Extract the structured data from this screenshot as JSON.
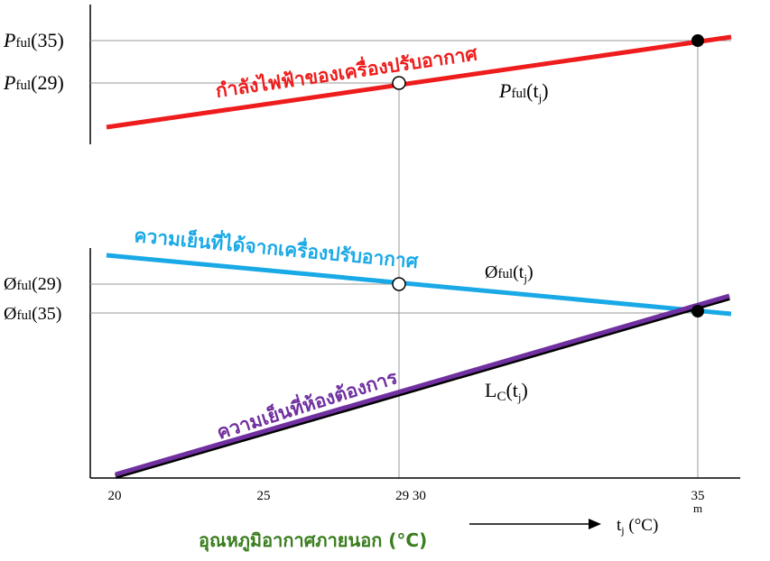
{
  "upper": {
    "labels": [
      {
        "symbol": "P",
        "sub": "ful",
        "arg": "(35)"
      },
      {
        "symbol": "P",
        "sub": "ful",
        "arg": "(29)"
      }
    ],
    "line_label": "กำลังไฟฟ้าของเครื่องปรับอากาศ",
    "curve_label": {
      "symbol": "P",
      "sub": "ful",
      "open": "(t",
      "sub2": "j",
      "close": ")"
    }
  },
  "lower": {
    "labels": [
      {
        "symbol": "Ø",
        "sub": "ful",
        "arg": "(29)"
      },
      {
        "symbol": "Ø",
        "sub": "ful",
        "arg": "(35)"
      }
    ],
    "capacity_label": "ความเย็นที่ได้จากเครื่องปรับอากาศ",
    "capacity_curve_label": {
      "symbol": "Ø",
      "sub": "ful",
      "open": "(t",
      "sub2": "j",
      "close": ")"
    },
    "load_label": "ความเย็นที่ห้องต้องการ",
    "load_curve_label": {
      "symbol": "L",
      "sub": "C",
      "open": "(t",
      "sub2": "j",
      "close": ")"
    }
  },
  "x_axis": {
    "ticks": [
      "20",
      "25",
      "29 30",
      "35",
      "m"
    ],
    "label": "อุณหภูมิอากาศภายนอก (°C)",
    "arrow_label": {
      "symbol": "t",
      "sub": "j",
      "unit": " (°C)"
    }
  }
}
